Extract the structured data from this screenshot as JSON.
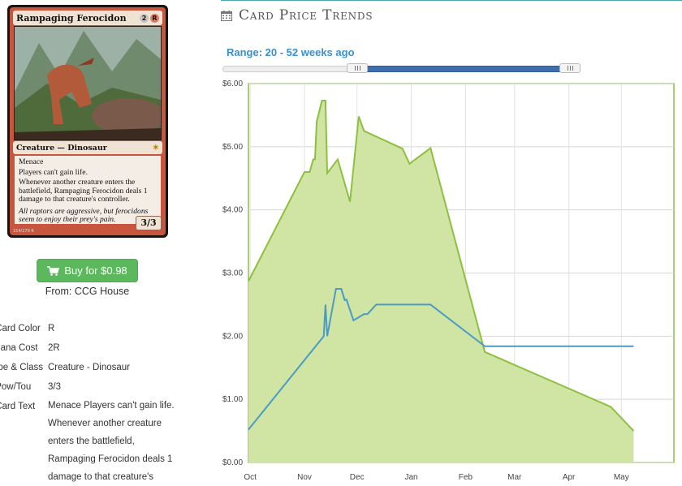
{
  "card": {
    "name": "Rampaging Ferocidon",
    "mana_symbols": [
      "2",
      "R"
    ],
    "type_line": "Creature — Dinosaur",
    "rules": [
      "Menace",
      "Players can't gain life.",
      "Whenever another creature enters the battlefield, Rampaging Ferocidon deals 1 damage to that creature's controller."
    ],
    "flavor": "All raptors are aggressive, but ferocidons seem to enjoy their prey's pain.",
    "pt": "3/3",
    "collector": "154/279 R"
  },
  "buy": {
    "label": "Buy for $0.98",
    "from": "From: CCG House"
  },
  "details": [
    {
      "label": "Card Color:",
      "value": "R"
    },
    {
      "label": "Mana Cost",
      "value": "2R"
    },
    {
      "label": "Type & Class:",
      "value": "Creature - Dinosaur"
    },
    {
      "label": "Pow/Tou:",
      "value": "3/3"
    },
    {
      "label": "Card Text:",
      "value": ""
    }
  ],
  "card_text_lines": [
    "Menace Players can't gain life.",
    "Whenever another creature",
    "enters the battlefield,",
    "Rampaging Ferocidon deals 1",
    "damage to that creature's"
  ],
  "panel": {
    "title": "Card Price Trends",
    "icon": "calendar-icon"
  },
  "range": {
    "label": "Range: 20 - 52 weeks ago",
    "from_weeks": 20,
    "to_weeks": 52
  },
  "colors": {
    "accent": "#3a8fcf",
    "buy_green": "#5cb85c",
    "area_fill": "#d0e4a4",
    "area_line": "#8cc03e",
    "buy_line": "#4a9cc3"
  },
  "chart_data": {
    "type": "area",
    "ylim": [
      0,
      6
    ],
    "yticks": [
      "$0.00",
      "$1.00",
      "$2.00",
      "$3.00",
      "$4.00",
      "$5.00",
      "$6.00"
    ],
    "xticks": [
      "Oct",
      "Nov",
      "Dec",
      "Jan",
      "Feb",
      "Mar",
      "Apr",
      "May"
    ],
    "grid": true,
    "series": [
      {
        "style": "filled area",
        "points": [
          [
            "2017-09-30",
            2.87
          ],
          [
            "2017-11-01",
            4.6
          ],
          [
            "2017-11-04",
            4.6
          ],
          [
            "2017-11-06",
            4.8
          ],
          [
            "2017-11-07",
            4.8
          ],
          [
            "2017-11-08",
            5.4
          ],
          [
            "2017-11-11",
            5.73
          ],
          [
            "2017-11-13",
            5.73
          ],
          [
            "2017-11-14",
            4.58
          ],
          [
            "2017-11-20",
            4.8
          ],
          [
            "2017-11-27",
            4.13
          ],
          [
            "2017-12-02",
            5.48
          ],
          [
            "2017-12-05",
            5.25
          ],
          [
            "2017-12-27",
            4.97
          ],
          [
            "2017-12-31",
            4.73
          ],
          [
            "2018-01-12",
            4.98
          ],
          [
            "2018-02-12",
            1.75
          ],
          [
            "2018-04-25",
            0.88
          ],
          [
            "2018-05-08",
            0.5
          ]
        ]
      },
      {
        "style": "line",
        "points": [
          [
            "2017-09-30",
            0.52
          ],
          [
            "2017-11-12",
            2.0
          ],
          [
            "2017-11-13",
            2.5
          ],
          [
            "2017-11-14",
            2.0
          ],
          [
            "2017-11-16",
            2.3
          ],
          [
            "2017-11-19",
            2.75
          ],
          [
            "2017-11-22",
            2.75
          ],
          [
            "2017-11-24",
            2.57
          ],
          [
            "2017-11-25",
            2.58
          ],
          [
            "2017-11-29",
            2.25
          ],
          [
            "2017-12-05",
            2.35
          ],
          [
            "2017-12-07",
            2.35
          ],
          [
            "2017-12-12",
            2.5
          ],
          [
            "2018-01-12",
            2.5
          ],
          [
            "2018-02-12",
            1.84
          ],
          [
            "2018-05-08",
            1.84
          ]
        ]
      }
    ]
  }
}
